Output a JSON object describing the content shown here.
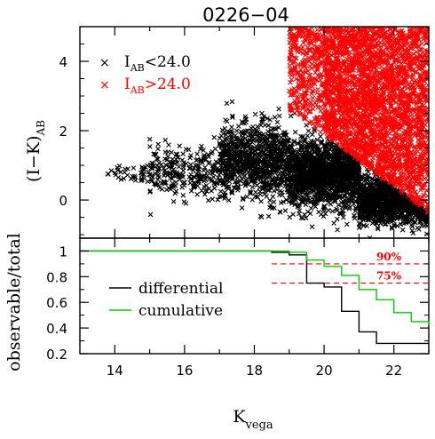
{
  "chart_data": [
    {
      "type": "scatter",
      "title": "0226−04",
      "ylabel": "(I−K)",
      "ylabel_sub": "AB",
      "xlim": [
        13,
        23
      ],
      "ylim": [
        -1.1,
        5.0
      ],
      "y_ticks": [
        0,
        2,
        4
      ],
      "series": [
        {
          "name_main": "I",
          "name_sub": "AB",
          "name_rest": "<24.0",
          "color": "#000000",
          "marker": "x",
          "clusters": [
            {
              "x_range": [
                13.8,
                15.0
              ],
              "y_center": 0.8,
              "y_spread": 0.3,
              "count": 40
            },
            {
              "x_range": [
                15.0,
                17.0
              ],
              "y_center": 0.8,
              "y_spread": 0.7,
              "count": 250
            },
            {
              "x_range": [
                17.0,
                19.0
              ],
              "y_center": 1.1,
              "y_spread": 1.1,
              "count": 900
            },
            {
              "x_range": [
                19.0,
                21.0
              ],
              "y_center": 0.8,
              "y_spread": 1.0,
              "count": 1500
            },
            {
              "x_range": [
                21.0,
                23.0
              ],
              "y_center": 0.0,
              "y_spread": 0.7,
              "count": 1300
            }
          ]
        },
        {
          "name_main": "I",
          "name_sub": "AB",
          "name_rest": ">24.0",
          "color": "#ff0000",
          "marker": "x",
          "clusters": [
            {
              "x_range": [
                19.0,
                20.0
              ],
              "y_center": 2.9,
              "y_spread": 1.0,
              "count": 400
            },
            {
              "x_range": [
                20.0,
                21.0
              ],
              "y_center": 2.6,
              "y_spread": 1.5,
              "count": 900
            },
            {
              "x_range": [
                21.0,
                22.0
              ],
              "y_center": 2.2,
              "y_spread": 1.8,
              "count": 1100
            },
            {
              "x_range": [
                22.0,
                23.0
              ],
              "y_center": 2.0,
              "y_spread": 1.9,
              "count": 1000
            }
          ]
        }
      ]
    },
    {
      "type": "line",
      "xlabel": "K",
      "xlabel_sub": "vega",
      "ylabel": "observable/total",
      "xlim": [
        13,
        23
      ],
      "ylim": [
        0.2,
        1.1
      ],
      "x_ticks": [
        14,
        16,
        18,
        20,
        22
      ],
      "y_ticks": [
        0.2,
        0.4,
        0.6,
        0.8,
        1
      ],
      "y_tick_labels": [
        "0.2",
        "0.4",
        "0.6",
        "0.8",
        "1"
      ],
      "series": [
        {
          "name": "differential",
          "color": "#000000",
          "step_x": [
            13,
            18,
            18.5,
            19.0,
            19.5,
            20.0,
            20.5,
            21.0,
            21.5,
            23
          ],
          "step_y": [
            1.0,
            1.0,
            0.99,
            0.97,
            0.75,
            0.72,
            0.53,
            0.37,
            0.28,
            0.28
          ]
        },
        {
          "name": "cumulative",
          "color": "#00cc00",
          "step_x": [
            13,
            18.0,
            18.5,
            19.0,
            19.5,
            20.0,
            20.5,
            21.0,
            21.5,
            22.0,
            22.5,
            23
          ],
          "step_y": [
            1.0,
            1.0,
            1.0,
            0.99,
            0.93,
            0.88,
            0.81,
            0.7,
            0.62,
            0.52,
            0.45,
            0.42
          ]
        }
      ],
      "annotations": [
        {
          "text": "90%",
          "y": 0.9,
          "x_range": [
            18.5,
            23
          ],
          "color": "#ff0000"
        },
        {
          "text": "75%",
          "y": 0.75,
          "x_range": [
            18.5,
            23
          ],
          "color": "#ff0000"
        }
      ]
    }
  ]
}
